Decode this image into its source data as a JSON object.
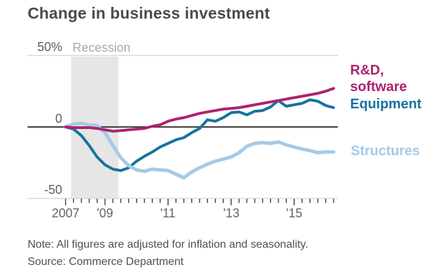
{
  "title": "Change in business investment",
  "recession_label": "Recession",
  "y_axis": {
    "top": "50%",
    "zero": "0",
    "bottom": "-50"
  },
  "legend": {
    "rd_line1": "R&D,",
    "rd_line2": "software",
    "equipment": "Equipment",
    "structures": "Structures"
  },
  "footnote": {
    "note": "Note: All figures are adjusted for inflation and seasonality.",
    "source": "Source: Commerce Department"
  },
  "colors": {
    "rd_software": "#ad2370",
    "equipment": "#16739e",
    "structures": "#a6cae6",
    "zero_line": "#3d3d3d",
    "gridline": "#dadada",
    "recession_band": "#e6e6e6",
    "tick": "#2f2f2f",
    "title_text": "#4a4a4a",
    "axis_text": "#666666",
    "recession_text": "#a9a9a9"
  },
  "chart_data": {
    "type": "line",
    "title": "Change in business investment",
    "y_unit": "%",
    "ylim": [
      -50,
      50
    ],
    "gridlines_y": [
      50,
      -50
    ],
    "zero_axis": true,
    "legend_position": "right",
    "y_tick_labels": [
      "50%",
      "0",
      "-50"
    ],
    "x": [
      "2007Q4",
      "2008Q1",
      "2008Q2",
      "2008Q3",
      "2008Q4",
      "2009Q1",
      "2009Q2",
      "2009Q3",
      "2009Q4",
      "2010Q1",
      "2010Q2",
      "2010Q3",
      "2010Q4",
      "2011Q1",
      "2011Q2",
      "2011Q3",
      "2011Q4",
      "2012Q1",
      "2012Q2",
      "2012Q3",
      "2012Q4",
      "2013Q1",
      "2013Q2",
      "2013Q3",
      "2013Q4",
      "2014Q1",
      "2014Q2",
      "2014Q3",
      "2014Q4",
      "2015Q1",
      "2015Q2",
      "2015Q3",
      "2015Q4",
      "2016Q1",
      "2016Q2"
    ],
    "x_ticks": [
      {
        "label": "2007",
        "index": 0
      },
      {
        "label": "'09",
        "index": 5
      },
      {
        "label": "'11",
        "index": 13
      },
      {
        "label": "'13",
        "index": 21
      },
      {
        "label": "'15",
        "index": 29
      }
    ],
    "recession_band": {
      "label": "Recession",
      "from_index": 0.7,
      "to_index": 6.7
    },
    "series": [
      {
        "name": "Equipment",
        "color": "#16739e",
        "stroke_width": 4,
        "values": [
          0,
          -1.5,
          -6,
          -13,
          -21,
          -26.5,
          -29.5,
          -30.5,
          -28.5,
          -24,
          -20.5,
          -17.5,
          -14,
          -11.5,
          -9,
          -7.5,
          -4,
          -1,
          5,
          4,
          6.5,
          10,
          10.5,
          8.5,
          11,
          11.5,
          14,
          18.5,
          14.5,
          15.5,
          16.5,
          19,
          18,
          15,
          13.5
        ]
      },
      {
        "name": "Structures",
        "color": "#a6cae6",
        "stroke_width": 5,
        "values": [
          0,
          2,
          2.5,
          1.5,
          1,
          -4,
          -13,
          -21.5,
          -27,
          -30,
          -31,
          -29.5,
          -30,
          -30.5,
          -33,
          -35.5,
          -31.5,
          -28.5,
          -26,
          -24,
          -22.5,
          -21,
          -18,
          -13.5,
          -11.5,
          -11,
          -11.5,
          -10.5,
          -12.5,
          -14,
          -15.5,
          -16.5,
          -18,
          -17.5,
          -17.5
        ]
      },
      {
        "name": "R&D, software",
        "color": "#ad2370",
        "stroke_width": 4,
        "values": [
          0,
          -0.5,
          -0.5,
          -0.5,
          -1,
          -2,
          -3,
          -2.5,
          -2,
          -1.5,
          -1,
          0.5,
          1.5,
          4,
          5.5,
          6.5,
          8,
          9.5,
          10.5,
          11.5,
          12.5,
          13,
          13.5,
          14.5,
          15.5,
          16.5,
          17.5,
          18.5,
          19.5,
          20.5,
          21.5,
          22.5,
          23.5,
          25,
          27
        ]
      }
    ]
  }
}
